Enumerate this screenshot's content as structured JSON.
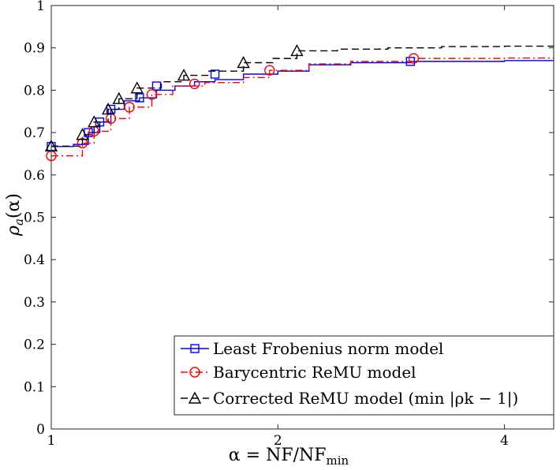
{
  "chart_data": {
    "type": "line",
    "xlabel": {
      "main": "α = NF/NF",
      "sub": "min"
    },
    "ylabel": {
      "rho": "ρ",
      "sub": "a",
      "arg": "(α)"
    },
    "x_scale": "log2",
    "xlim": [
      1,
      4.65
    ],
    "ylim": [
      0,
      1
    ],
    "x_ticks": [
      1,
      2,
      4
    ],
    "x_tick_labels": [
      "1",
      "2",
      "4"
    ],
    "y_ticks": [
      0,
      0.1,
      0.2,
      0.3,
      0.4,
      0.5,
      0.6,
      0.7,
      0.8,
      0.9,
      1
    ],
    "y_tick_labels": [
      "0",
      "0.1",
      "0.2",
      "0.3",
      "0.4",
      "0.5",
      "0.6",
      "0.7",
      "0.8",
      "0.9",
      "1"
    ],
    "grid": false,
    "legend_position": "bottom-right",
    "series": [
      {
        "name": "Least Frobenius norm model",
        "color": "#0000ff",
        "dash": "solid",
        "marker": "square",
        "x": [
          1.0,
          1.07,
          1.12,
          1.16,
          1.2,
          1.25,
          1.31,
          1.38,
          1.46,
          1.55,
          1.65,
          1.8,
          2.0,
          2.2,
          2.5,
          3.0,
          3.5,
          4.0,
          4.65
        ],
        "y": [
          0.667,
          0.672,
          0.7,
          0.725,
          0.755,
          0.775,
          0.782,
          0.8,
          0.81,
          0.82,
          0.825,
          0.838,
          0.845,
          0.86,
          0.865,
          0.868,
          0.868,
          0.87,
          0.87
        ],
        "marker_x": [
          1.0,
          1.12,
          1.16,
          1.2,
          1.31,
          1.38,
          1.65,
          3.0
        ],
        "marker_y": [
          0.667,
          0.7,
          0.725,
          0.755,
          0.782,
          0.81,
          0.838,
          0.868
        ]
      },
      {
        "name": "Barycentric ReMU model",
        "color": "#ff0000",
        "dash": "dashdot",
        "marker": "circle",
        "x": [
          1.0,
          1.1,
          1.14,
          1.2,
          1.27,
          1.36,
          1.45,
          1.6,
          1.8,
          1.95,
          2.2,
          2.5,
          3.03,
          3.5,
          4.0,
          4.65
        ],
        "y": [
          0.645,
          0.675,
          0.703,
          0.733,
          0.76,
          0.79,
          0.81,
          0.818,
          0.83,
          0.847,
          0.862,
          0.868,
          0.875,
          0.875,
          0.876,
          0.876
        ],
        "marker_x": [
          1.0,
          1.1,
          1.14,
          1.2,
          1.27,
          1.36,
          1.55,
          1.95,
          3.03
        ],
        "marker_y": [
          0.645,
          0.675,
          0.703,
          0.733,
          0.76,
          0.79,
          0.815,
          0.847,
          0.875
        ]
      },
      {
        "name": "Corrected ReMU model (min |ρk − 1|)",
        "color": "#000000",
        "dash": "dashed",
        "marker": "triangle",
        "x": [
          1.0,
          1.06,
          1.1,
          1.14,
          1.19,
          1.23,
          1.3,
          1.4,
          1.5,
          1.62,
          1.8,
          1.97,
          2.12,
          2.4,
          2.8,
          3.3,
          4.0,
          4.65
        ],
        "y": [
          0.668,
          0.668,
          0.695,
          0.725,
          0.755,
          0.78,
          0.805,
          0.82,
          0.835,
          0.845,
          0.865,
          0.875,
          0.893,
          0.897,
          0.9,
          0.903,
          0.904,
          0.905
        ],
        "marker_x": [
          1.0,
          1.1,
          1.14,
          1.19,
          1.23,
          1.3,
          1.5,
          1.8,
          2.12
        ],
        "marker_y": [
          0.668,
          0.695,
          0.725,
          0.755,
          0.78,
          0.805,
          0.835,
          0.865,
          0.893
        ]
      }
    ]
  }
}
